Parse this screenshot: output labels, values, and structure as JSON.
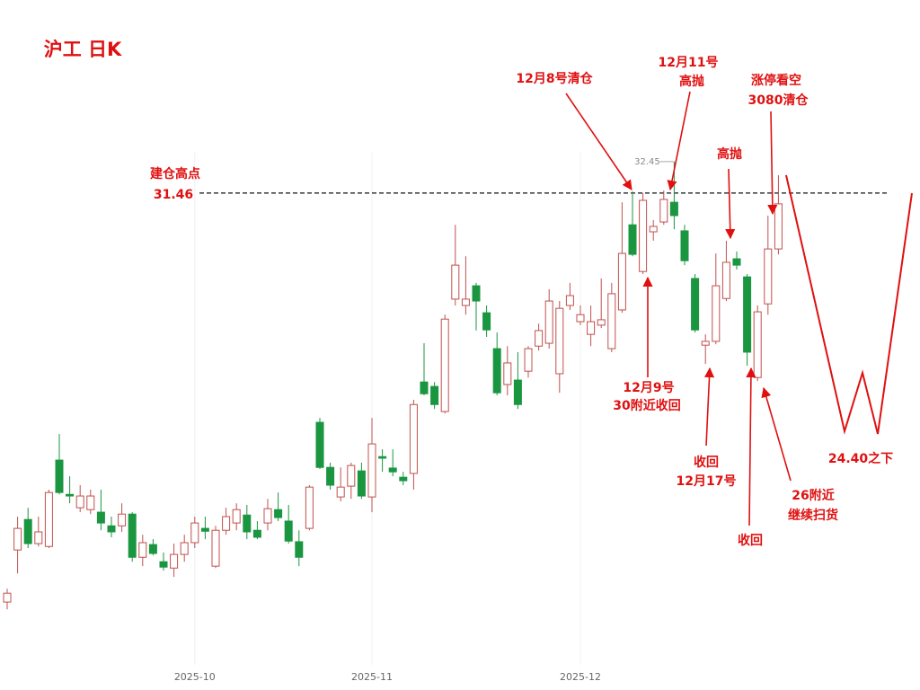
{
  "chart_data": {
    "type": "candlestick",
    "title": "沪工 日K",
    "categories": [
      null,
      null,
      null,
      null,
      null,
      null,
      null,
      null,
      null,
      null,
      null,
      null,
      null,
      null,
      null,
      null,
      null,
      null,
      "2025-10",
      null,
      null,
      null,
      null,
      null,
      null,
      null,
      null,
      null,
      null,
      null,
      null,
      null,
      null,
      null,
      null,
      "2025-11",
      null,
      null,
      null,
      null,
      null,
      null,
      null,
      null,
      null,
      null,
      null,
      null,
      null,
      null,
      null,
      null,
      null,
      null,
      null,
      "2025-12",
      null,
      null,
      null,
      null,
      null,
      null,
      null,
      null,
      null,
      null,
      null,
      null,
      null,
      null,
      null,
      null,
      null,
      null,
      null
    ],
    "open": [
      18.58,
      20.22,
      21.18,
      20.42,
      20.33,
      23.05,
      21.97,
      21.55,
      21.49,
      21.41,
      20.98,
      20.98,
      21.35,
      19.99,
      20.39,
      19.85,
      19.65,
      20.08,
      20.45,
      20.9,
      19.71,
      20.84,
      21.07,
      21.32,
      20.84,
      21.07,
      21.49,
      21.13,
      20.48,
      20.9,
      24.24,
      22.82,
      21.89,
      22.23,
      22.71,
      21.89,
      23.16,
      22.8,
      22.51,
      22.63,
      25.51,
      25.37,
      24.58,
      28.12,
      27.92,
      28.54,
      27.69,
      26.56,
      25.43,
      25.57,
      25.85,
      26.64,
      26.73,
      25.77,
      27.92,
      27.41,
      27.01,
      27.3,
      26.56,
      27.78,
      30.46,
      28.99,
      30.24,
      30.55,
      31.17,
      30.27,
      28.77,
      26.67,
      26.79,
      28.14,
      29.39,
      28.82,
      25.65,
      27.97,
      29.7
    ],
    "close": [
      18.86,
      20.9,
      20.42,
      20.79,
      22.03,
      22.03,
      21.92,
      21.92,
      21.92,
      21.07,
      20.79,
      21.35,
      19.99,
      20.45,
      20.11,
      19.68,
      20.08,
      20.45,
      21.07,
      20.81,
      20.84,
      21.27,
      21.49,
      20.79,
      20.62,
      21.52,
      21.24,
      20.5,
      19.99,
      22.2,
      22.82,
      22.26,
      22.2,
      22.88,
      21.92,
      23.56,
      23.11,
      22.68,
      22.4,
      24.8,
      25.14,
      24.8,
      27.49,
      29.19,
      28.12,
      28.06,
      27.15,
      25.17,
      26.11,
      24.8,
      26.56,
      27.13,
      28.06,
      27.83,
      28.23,
      27.63,
      27.41,
      27.47,
      28.29,
      29.56,
      29.53,
      31.23,
      30.41,
      31.26,
      30.75,
      29.33,
      27.15,
      26.79,
      28.54,
      29.28,
      29.19,
      26.45,
      27.72,
      29.7,
      31.12
    ],
    "high": [
      19.0,
      21.27,
      21.55,
      21.27,
      22.12,
      23.87,
      22.54,
      22.26,
      22.12,
      22.12,
      21.27,
      21.69,
      21.41,
      20.7,
      20.56,
      20.14,
      20.42,
      20.7,
      21.27,
      21.27,
      20.98,
      21.55,
      21.69,
      21.64,
      21.13,
      21.83,
      22.03,
      21.64,
      20.84,
      22.26,
      24.38,
      22.97,
      22.82,
      22.97,
      22.97,
      24.38,
      23.39,
      23.39,
      22.68,
      24.95,
      26.73,
      25.51,
      27.63,
      30.46,
      29.47,
      28.63,
      27.92,
      27.07,
      26.64,
      26.45,
      26.64,
      27.35,
      28.43,
      28.06,
      28.63,
      27.92,
      27.92,
      28.77,
      28.63,
      31.17,
      31.51,
      31.46,
      30.61,
      31.54,
      32.45,
      30.46,
      28.91,
      27.01,
      29.56,
      29.96,
      29.62,
      28.91,
      27.92,
      30.75,
      32.02
    ],
    "low": [
      18.35,
      19.48,
      20.28,
      20.33,
      20.28,
      21.97,
      21.69,
      21.41,
      21.35,
      20.84,
      20.62,
      20.79,
      19.85,
      19.71,
      20.05,
      19.57,
      19.37,
      19.85,
      20.28,
      20.56,
      19.65,
      20.7,
      20.84,
      20.56,
      20.56,
      20.84,
      21.13,
      20.42,
      19.71,
      20.84,
      22.77,
      22.12,
      21.75,
      21.83,
      21.83,
      21.41,
      22.68,
      22.54,
      22.26,
      22.12,
      25.09,
      24.66,
      24.52,
      27.92,
      27.63,
      27.13,
      26.93,
      25.09,
      25.09,
      24.66,
      25.65,
      26.5,
      26.56,
      25.17,
      27.78,
      27.3,
      26.64,
      27.21,
      26.45,
      27.69,
      29.47,
      28.91,
      29.96,
      30.46,
      30.32,
      29.19,
      27.07,
      26.08,
      26.7,
      28.06,
      29.05,
      26.02,
      25.54,
      27.63,
      29.53
    ],
    "up_color": "#c0504d",
    "down_color": "#1a9641",
    "ylim": [
      15.81,
      37.54
    ],
    "max_label_index": 64,
    "reference_line": {
      "value": 31.46,
      "label": "建仓高点"
    },
    "annotations": [
      "12月8号清仓",
      "12月11号",
      "高抛",
      "涨停看空",
      "3080清仓",
      "高抛",
      "12月9号",
      "30附近收回",
      "收回",
      "12月17号",
      "收回",
      "26附近",
      "继续扫货",
      "24.40之下"
    ]
  }
}
